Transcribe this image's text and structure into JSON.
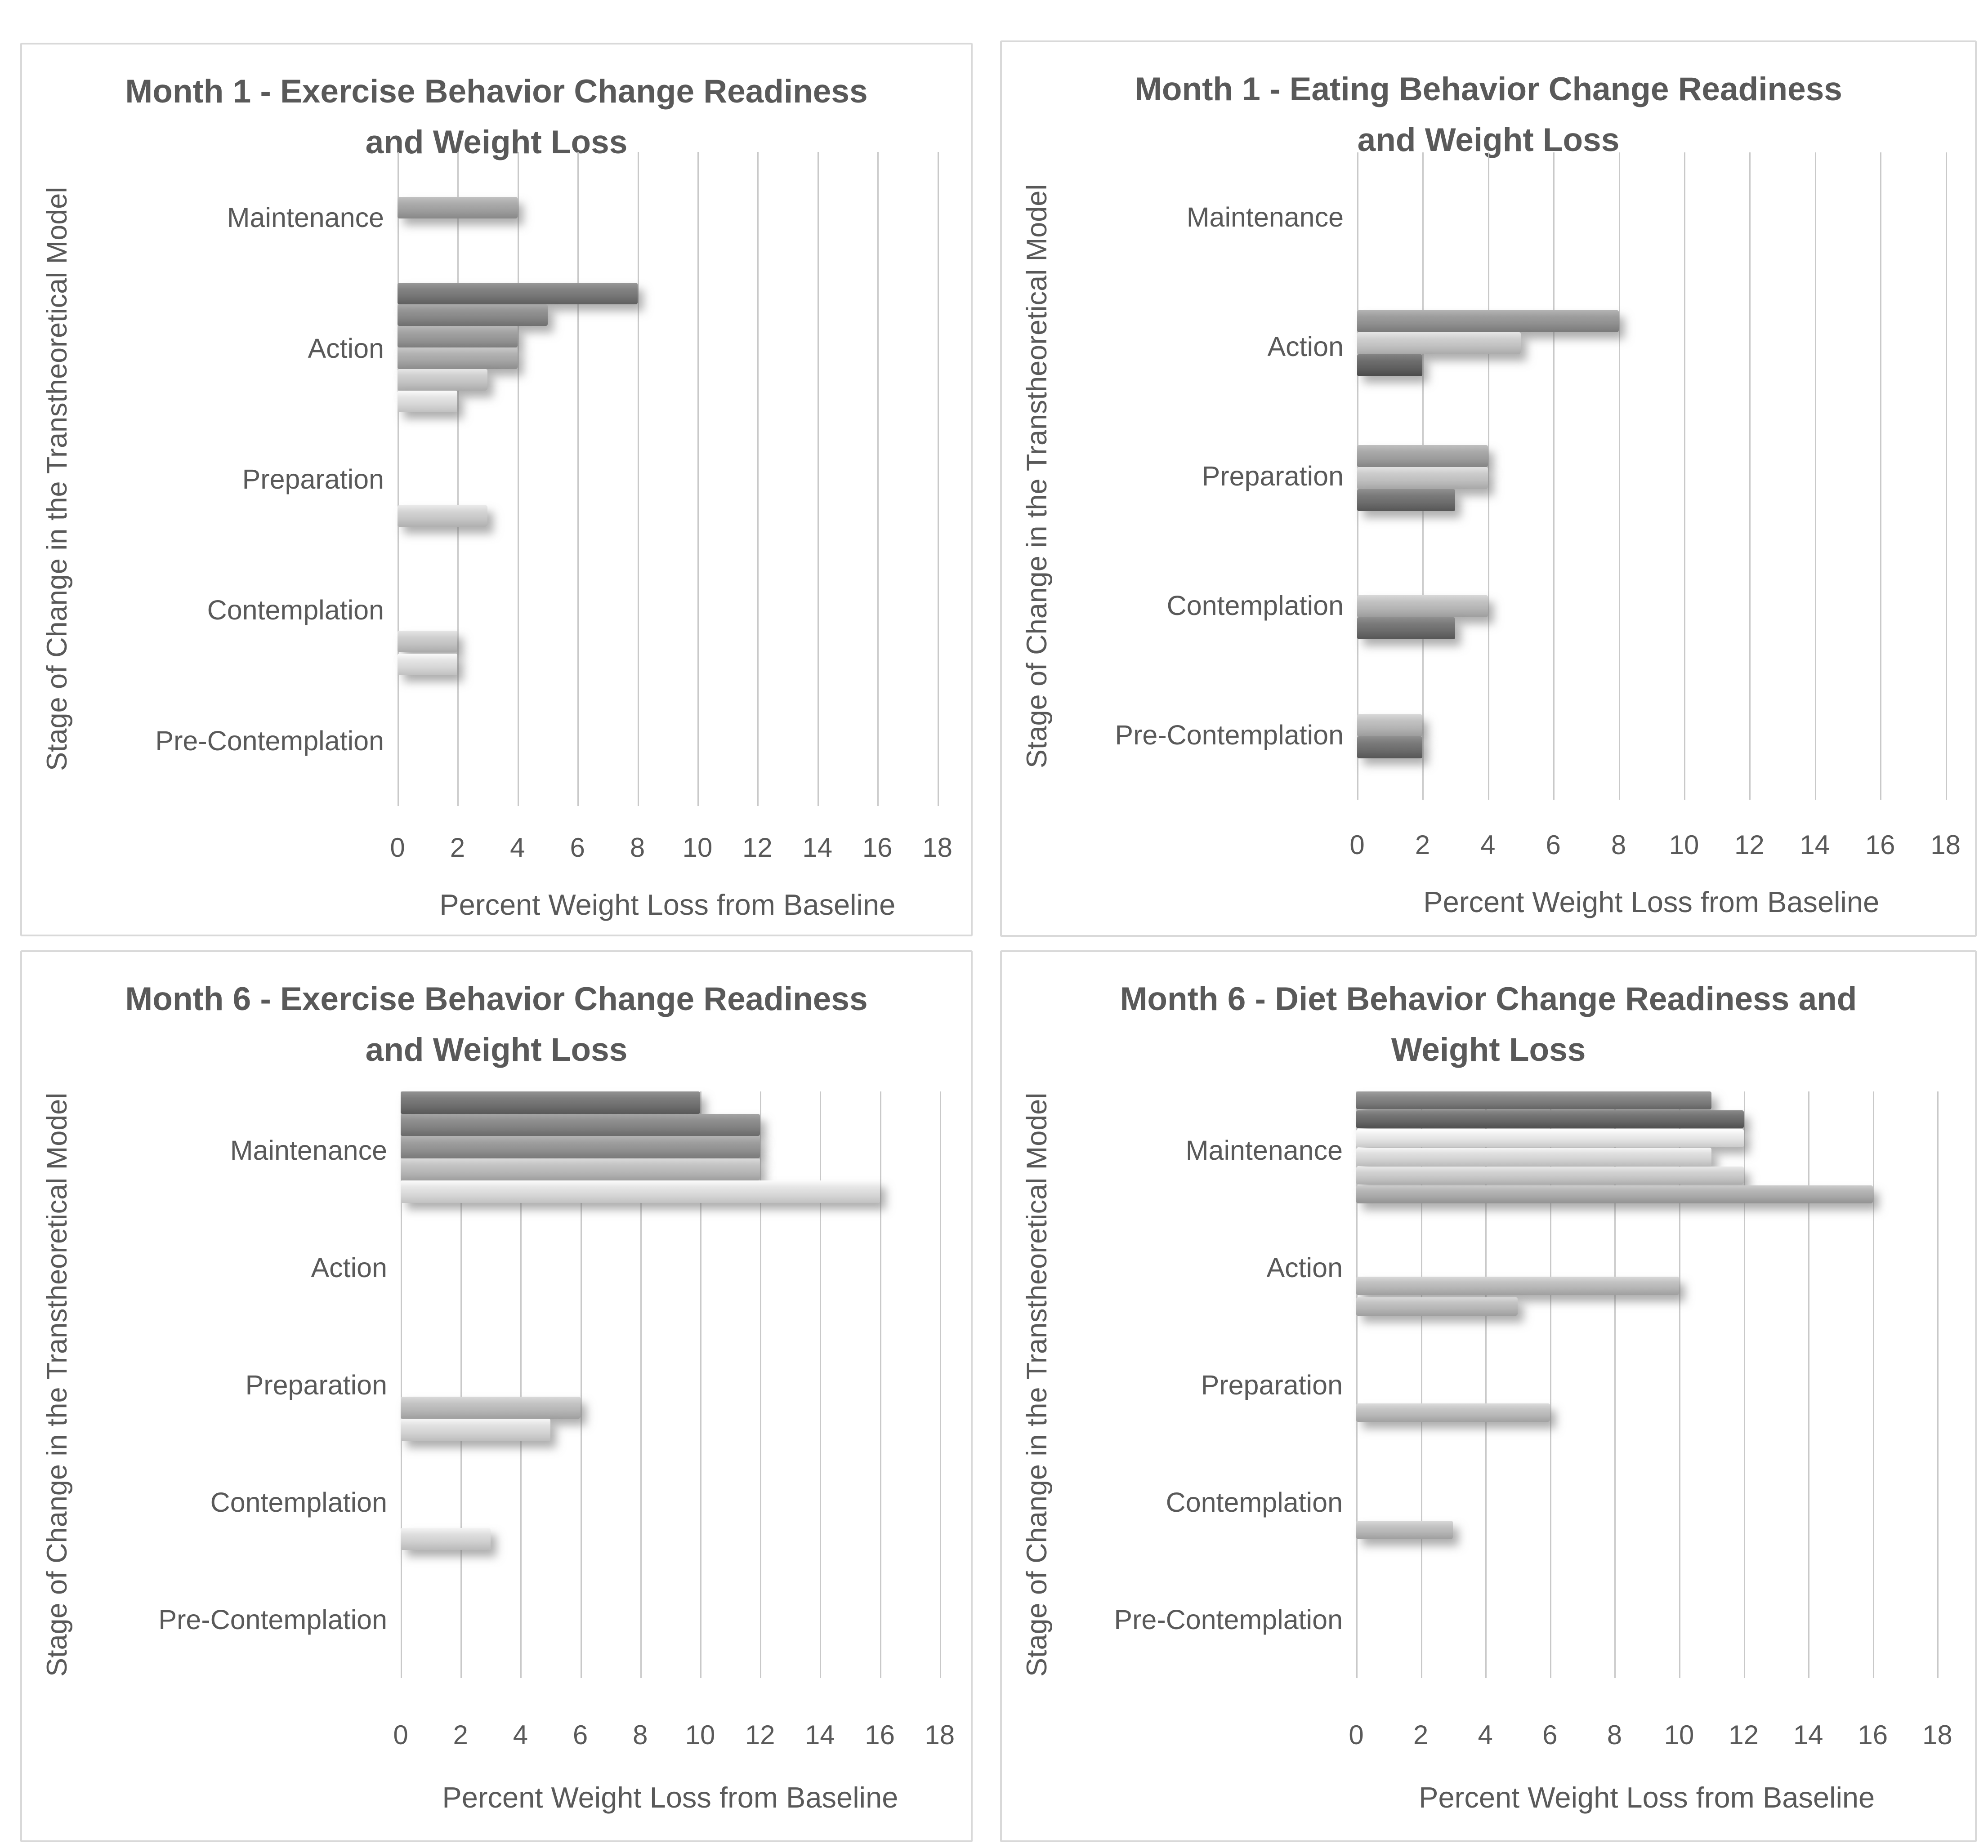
{
  "page": {
    "background": "#ffffff",
    "panel_border_color": "#d9d9d9",
    "text_color": "#595959",
    "gridline_color": "#c9c9c9"
  },
  "chart_data": [
    {
      "id": "month1-exercise",
      "type": "bar",
      "orientation": "horizontal",
      "title": "Month 1 - Exercise Behavior Change Readiness and Weight Loss",
      "title_lines": [
        "Month 1 - Exercise Behavior Change Readiness",
        "and Weight Loss"
      ],
      "xlabel": "Percent Weight Loss from Baseline",
      "ylabel": "Stage of Change in the Transtheoretical Model",
      "xlim": [
        0,
        18
      ],
      "xticks": [
        0,
        2,
        4,
        6,
        8,
        10,
        12,
        14,
        16,
        18
      ],
      "grid": true,
      "legend": "none",
      "categories": [
        "Maintenance",
        "Action",
        "Preparation",
        "Contemplation",
        "Pre-Contemplation"
      ],
      "bars": [
        {
          "category": "Maintenance",
          "value": 4,
          "color": "#9e9e9e",
          "offset": 0.345
        },
        {
          "category": "Action",
          "value": 8,
          "color": "#757575",
          "offset": 0.0
        },
        {
          "category": "Action",
          "value": 5,
          "color": "#868686",
          "offset": 0.165
        },
        {
          "category": "Action",
          "value": 4,
          "color": "#959595",
          "offset": 0.33
        },
        {
          "category": "Action",
          "value": 4,
          "color": "#a4a4a4",
          "offset": 0.495
        },
        {
          "category": "Action",
          "value": 3,
          "color": "#c2c2c2",
          "offset": 0.66
        },
        {
          "category": "Action",
          "value": 2,
          "color": "#d7d7d7",
          "offset": 0.825
        },
        {
          "category": "Preparation",
          "value": 3,
          "color": "#c6c6c6",
          "offset": 0.7
        },
        {
          "category": "Contemplation",
          "value": 2,
          "color": "#c2c2c2",
          "offset": 0.66
        },
        {
          "category": "Contemplation",
          "value": 2,
          "color": "#d7d7d7",
          "offset": 0.835
        }
      ]
    },
    {
      "id": "month1-eating",
      "type": "bar",
      "orientation": "horizontal",
      "title": "Month 1 - Eating Behavior Change Readiness and Weight Loss",
      "title_lines": [
        "Month 1 - Eating Behavior Change Readiness",
        "and Weight Loss"
      ],
      "xlabel": "Percent Weight Loss from Baseline",
      "ylabel": "Stage of Change in the Transtheoretical Model",
      "xlim": [
        0,
        18
      ],
      "xticks": [
        0,
        2,
        4,
        6,
        8,
        10,
        12,
        14,
        16,
        18
      ],
      "grid": true,
      "legend": "none",
      "categories": [
        "Maintenance",
        "Action",
        "Preparation",
        "Contemplation",
        "Pre-Contemplation"
      ],
      "bars": [
        {
          "category": "Action",
          "value": 8,
          "color": "#8f8f8f",
          "offset": 0.22
        },
        {
          "category": "Action",
          "value": 5,
          "color": "#c1c1c1",
          "offset": 0.39
        },
        {
          "category": "Action",
          "value": 2,
          "color": "#606060",
          "offset": 0.56
        },
        {
          "category": "Preparation",
          "value": 4,
          "color": "#9c9c9c",
          "offset": 0.26
        },
        {
          "category": "Preparation",
          "value": 4,
          "color": "#bebebe",
          "offset": 0.43
        },
        {
          "category": "Preparation",
          "value": 3,
          "color": "#6c6c6c",
          "offset": 0.6
        },
        {
          "category": "Contemplation",
          "value": 4,
          "color": "#b4b4b4",
          "offset": 0.42
        },
        {
          "category": "Contemplation",
          "value": 3,
          "color": "#6c6c6c",
          "offset": 0.59
        },
        {
          "category": "Pre-Contemplation",
          "value": 2,
          "color": "#b4b4b4",
          "offset": 0.34
        },
        {
          "category": "Pre-Contemplation",
          "value": 2,
          "color": "#6c6c6c",
          "offset": 0.51
        }
      ]
    },
    {
      "id": "month6-exercise",
      "type": "bar",
      "orientation": "horizontal",
      "title": "Month 6 - Exercise Behavior Change Readiness and Weight Loss",
      "title_lines": [
        "Month 6 - Exercise Behavior Change Readiness",
        "and Weight Loss"
      ],
      "xlabel": "Percent Weight Loss from Baseline",
      "ylabel": "Stage of Change in the Transtheoretical Model",
      "xlim": [
        0,
        18
      ],
      "xticks": [
        0,
        2,
        4,
        6,
        8,
        10,
        12,
        14,
        16,
        18
      ],
      "grid": true,
      "legend": "none",
      "categories": [
        "Maintenance",
        "Action",
        "Preparation",
        "Contemplation",
        "Pre-Contemplation"
      ],
      "bars": [
        {
          "category": "Maintenance",
          "value": 10,
          "color": "#6f6f6f",
          "offset": 0.0
        },
        {
          "category": "Maintenance",
          "value": 12,
          "color": "#818181",
          "offset": 0.19
        },
        {
          "category": "Maintenance",
          "value": 12,
          "color": "#909090",
          "offset": 0.38
        },
        {
          "category": "Maintenance",
          "value": 12,
          "color": "#b6b6b6",
          "offset": 0.57
        },
        {
          "category": "Maintenance",
          "value": 16,
          "color": "#d8d8d8",
          "offset": 0.76
        },
        {
          "category": "Preparation",
          "value": 6,
          "color": "#b6b6b6",
          "offset": 0.6
        },
        {
          "category": "Preparation",
          "value": 5,
          "color": "#d3d3d3",
          "offset": 0.79
        },
        {
          "category": "Contemplation",
          "value": 3,
          "color": "#d0d0d0",
          "offset": 0.72
        }
      ]
    },
    {
      "id": "month6-diet",
      "type": "bar",
      "orientation": "horizontal",
      "title": "Month 6 - Diet Behavior Change Readiness and Weight Loss",
      "title_lines": [
        "Month 6 - Diet Behavior Change Readiness and",
        "Weight Loss"
      ],
      "xlabel": "Percent Weight Loss from Baseline",
      "ylabel": "Stage of Change in the Transtheoretical Model",
      "xlim": [
        0,
        18
      ],
      "xticks": [
        0,
        2,
        4,
        6,
        8,
        10,
        12,
        14,
        16,
        18
      ],
      "grid": true,
      "legend": "none",
      "categories": [
        "Maintenance",
        "Action",
        "Preparation",
        "Contemplation",
        "Pre-Contemplation"
      ],
      "bars": [
        {
          "category": "Maintenance",
          "value": 11,
          "color": "#7b7b7b",
          "offset": 0.0
        },
        {
          "category": "Maintenance",
          "value": 12,
          "color": "#666666",
          "offset": 0.16
        },
        {
          "category": "Maintenance",
          "value": 12,
          "color": "#e1e1e1",
          "offset": 0.32
        },
        {
          "category": "Maintenance",
          "value": 11,
          "color": "#d3d3d3",
          "offset": 0.48
        },
        {
          "category": "Maintenance",
          "value": 12,
          "color": "#c5c5c5",
          "offset": 0.64
        },
        {
          "category": "Maintenance",
          "value": 16,
          "color": "#a8a8a8",
          "offset": 0.8
        },
        {
          "category": "Action",
          "value": 10,
          "color": "#b5b5b5",
          "offset": 0.58
        },
        {
          "category": "Action",
          "value": 5,
          "color": "#b5b5b5",
          "offset": 0.755
        },
        {
          "category": "Preparation",
          "value": 6,
          "color": "#b8b8b8",
          "offset": 0.66
        },
        {
          "category": "Contemplation",
          "value": 3,
          "color": "#b5b5b5",
          "offset": 0.66
        }
      ]
    }
  ]
}
